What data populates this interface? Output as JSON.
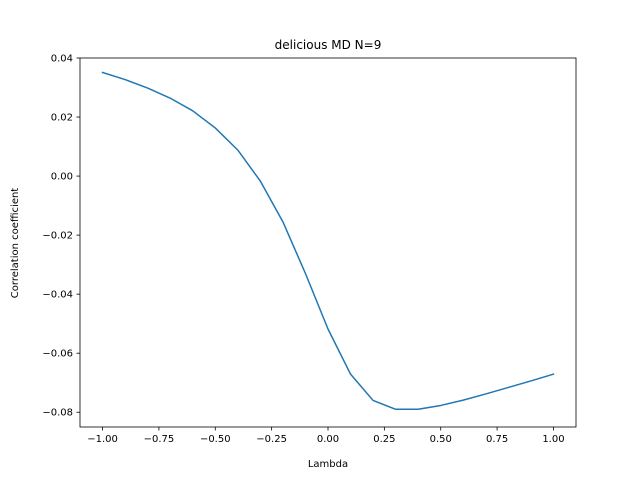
{
  "chart_data": {
    "type": "line",
    "title": "delicious MD N=9",
    "xlabel": "Lambda",
    "ylabel": "Correlation coefficient",
    "xlim": [
      -1.1,
      1.1
    ],
    "ylim": [
      -0.085,
      0.04
    ],
    "grid": false,
    "x_ticks": [
      -1.0,
      -0.75,
      -0.5,
      -0.25,
      0.0,
      0.25,
      0.5,
      0.75,
      1.0
    ],
    "x_tick_labels": [
      "−1.00",
      "−0.75",
      "−0.50",
      "−0.25",
      "0.00",
      "0.25",
      "0.50",
      "0.75",
      "1.00"
    ],
    "y_ticks": [
      -0.08,
      -0.06,
      -0.04,
      -0.02,
      0.0,
      0.02,
      0.04
    ],
    "y_tick_labels": [
      "−0.08",
      "−0.06",
      "−0.04",
      "−0.02",
      "0.00",
      "0.02",
      "0.04"
    ],
    "series": [
      {
        "color": "#1f77b4",
        "x": [
          -1.0,
          -0.9,
          -0.8,
          -0.7,
          -0.6,
          -0.5,
          -0.4,
          -0.3,
          -0.2,
          -0.1,
          0.0,
          0.1,
          0.2,
          0.3,
          0.4,
          0.5,
          0.6,
          0.7,
          0.8,
          0.9,
          1.0
        ],
        "y": [
          0.0351,
          0.0327,
          0.0298,
          0.0264,
          0.0221,
          0.0163,
          0.0088,
          -0.0017,
          -0.0155,
          -0.033,
          -0.0518,
          -0.0671,
          -0.076,
          -0.079,
          -0.079,
          -0.0777,
          -0.0759,
          -0.0738,
          -0.0716,
          -0.0694,
          -0.0671
        ]
      }
    ]
  }
}
